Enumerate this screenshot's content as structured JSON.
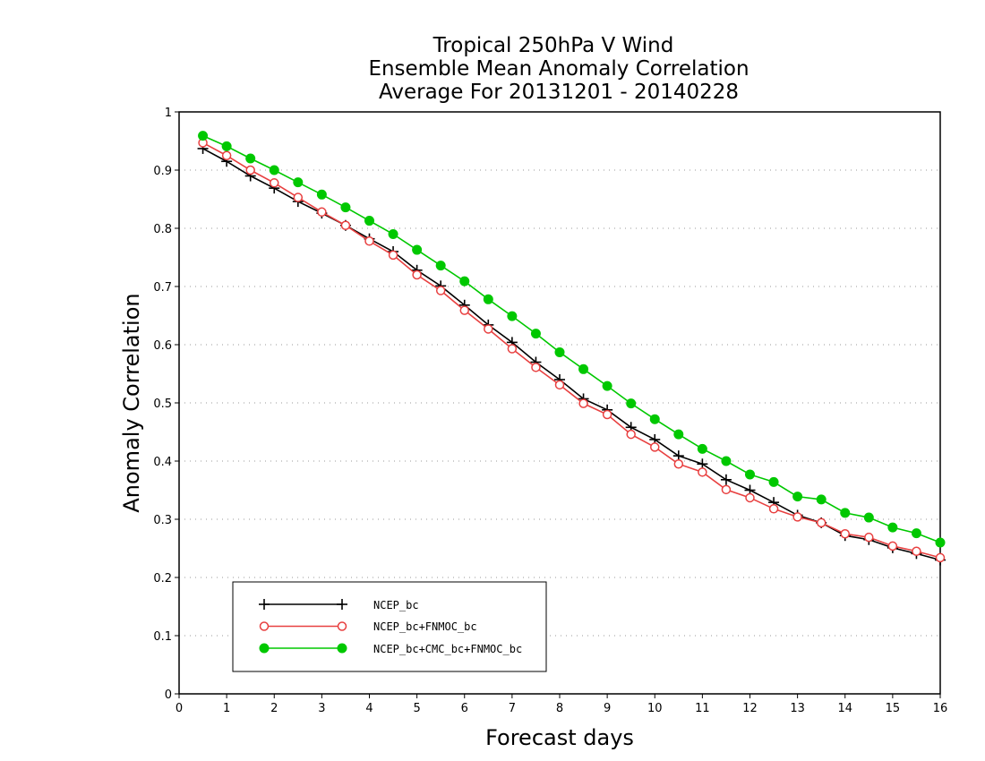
{
  "chart_data": {
    "type": "line",
    "title_lines": [
      "Tropical 250hPa V Wind",
      "Ensemble Mean Anomaly Correlation",
      "Average For 20131201 - 20140228"
    ],
    "xlabel": "Forecast days",
    "ylabel": "Anomaly Correlation",
    "xlim": [
      0,
      16
    ],
    "ylim": [
      0,
      1
    ],
    "xticks": [
      "0",
      "1",
      "2",
      "3",
      "4",
      "5",
      "6",
      "7",
      "8",
      "9",
      "10",
      "11",
      "12",
      "13",
      "14",
      "15",
      "16"
    ],
    "yticks": [
      "0",
      "0.1",
      "0.2",
      "0.3",
      "0.4",
      "0.5",
      "0.6",
      "0.7",
      "0.8",
      "0.9",
      "1"
    ],
    "grid": "horizontal dotted",
    "legend_position": "bottom-left",
    "x": [
      0.5,
      1,
      1.5,
      2,
      2.5,
      3,
      3.5,
      4,
      4.5,
      5,
      5.5,
      6,
      6.5,
      7,
      7.5,
      8,
      8.5,
      9,
      9.5,
      10,
      10.5,
      11,
      11.5,
      12,
      12.5,
      13,
      13.5,
      14,
      14.5,
      15,
      15.5,
      16
    ],
    "series": [
      {
        "name": "NCEP_bc",
        "color": "#000000",
        "marker": "plus",
        "values": [
          0.937,
          0.915,
          0.89,
          0.869,
          0.846,
          0.826,
          0.805,
          0.782,
          0.76,
          0.728,
          0.701,
          0.668,
          0.634,
          0.604,
          0.57,
          0.54,
          0.507,
          0.488,
          0.458,
          0.437,
          0.409,
          0.395,
          0.368,
          0.35,
          0.329,
          0.307,
          0.294,
          0.272,
          0.265,
          0.251,
          0.241,
          0.23
        ]
      },
      {
        "name": "NCEP_bc+FNMOC_bc",
        "color": "#e84040",
        "marker": "open-circle",
        "values": [
          0.947,
          0.925,
          0.9,
          0.878,
          0.853,
          0.828,
          0.805,
          0.778,
          0.754,
          0.72,
          0.693,
          0.659,
          0.627,
          0.593,
          0.561,
          0.531,
          0.499,
          0.48,
          0.446,
          0.424,
          0.395,
          0.381,
          0.351,
          0.337,
          0.318,
          0.304,
          0.294,
          0.275,
          0.269,
          0.254,
          0.245,
          0.234
        ]
      },
      {
        "name": "NCEP_bc+CMC_bc+FNMOC_bc",
        "color": "#00c800",
        "marker": "filled-circle",
        "values": [
          0.959,
          0.941,
          0.92,
          0.9,
          0.879,
          0.858,
          0.836,
          0.813,
          0.79,
          0.763,
          0.736,
          0.709,
          0.678,
          0.649,
          0.619,
          0.587,
          0.558,
          0.529,
          0.499,
          0.472,
          0.446,
          0.421,
          0.4,
          0.377,
          0.364,
          0.339,
          0.334,
          0.311,
          0.303,
          0.286,
          0.276,
          0.26
        ]
      }
    ]
  }
}
